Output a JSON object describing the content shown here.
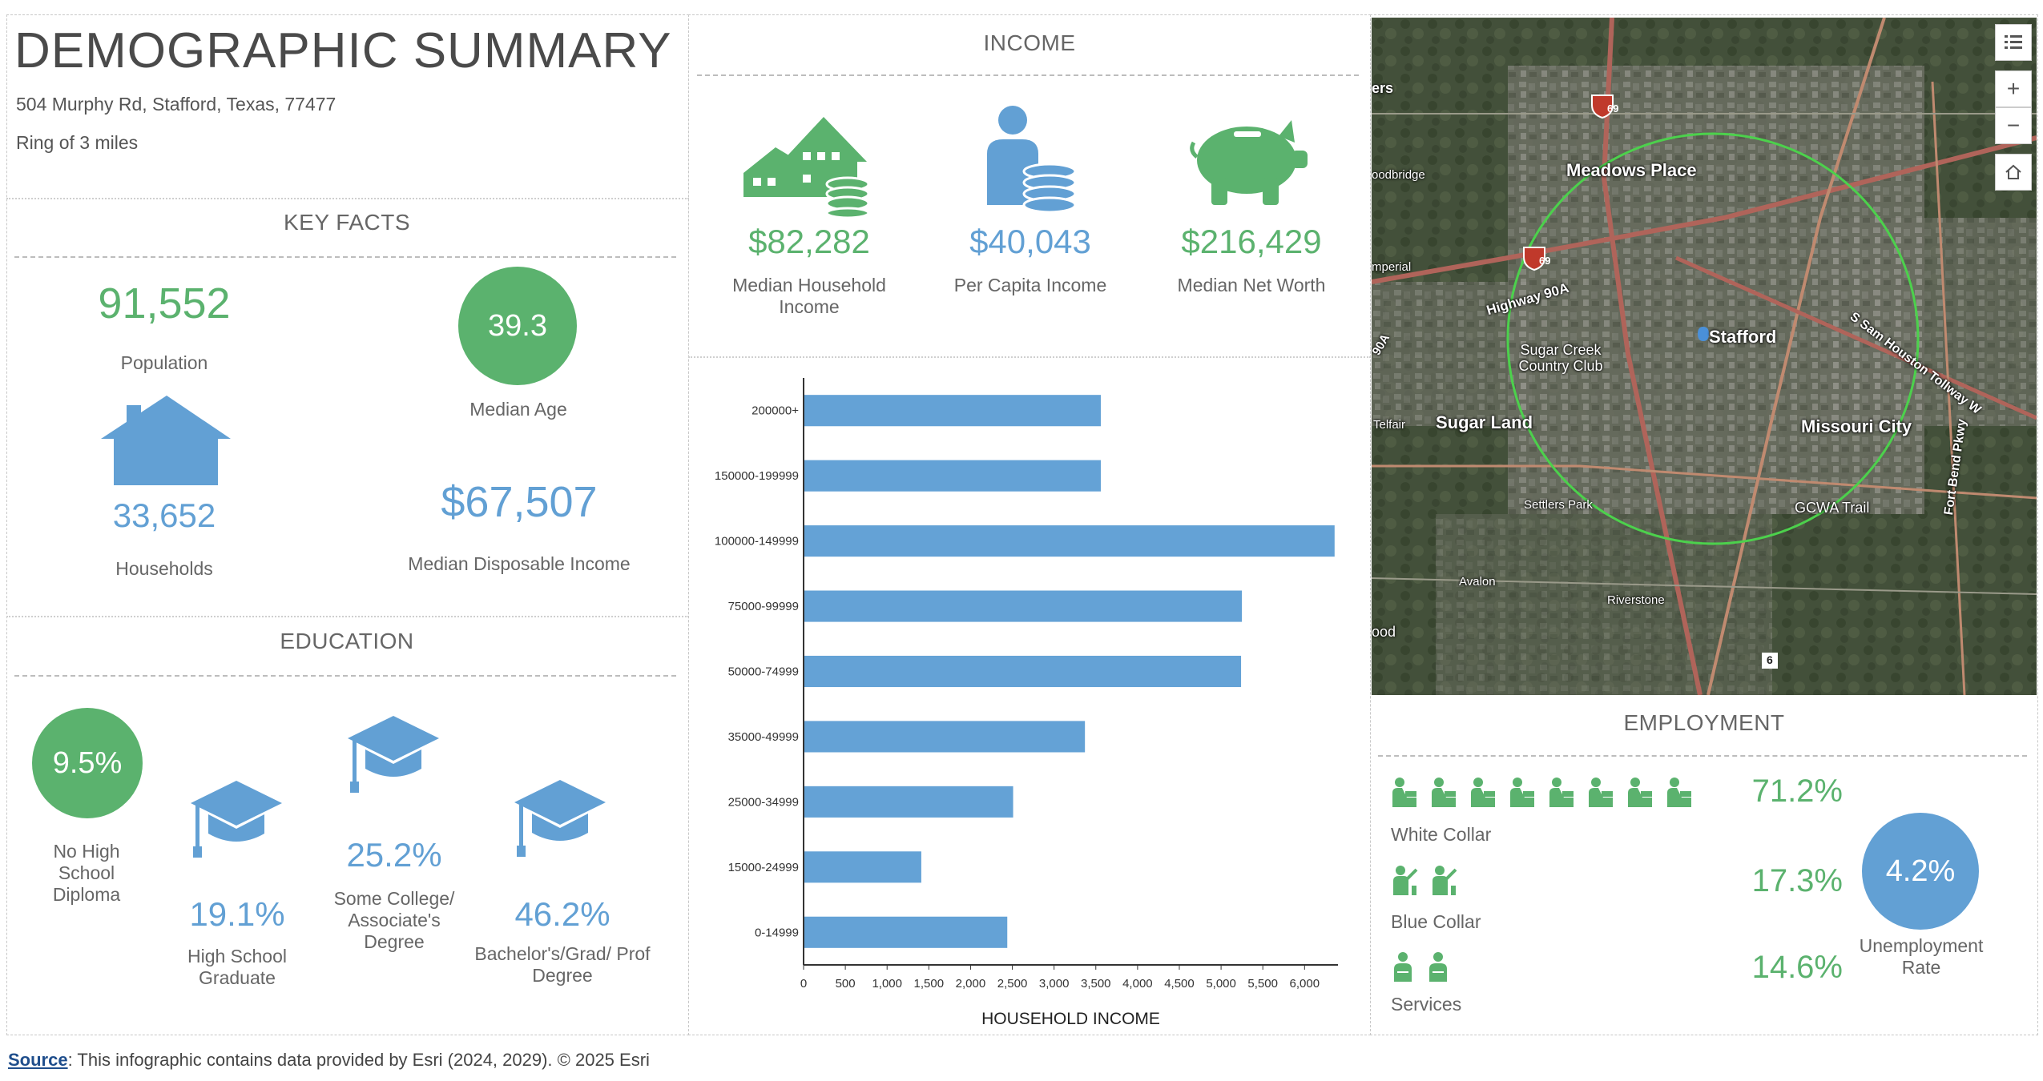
{
  "header": {
    "title": "DEMOGRAPHIC SUMMARY",
    "address": "504 Murphy Rd, Stafford, Texas, 77477",
    "ring": "Ring of 3 miles"
  },
  "key_facts": {
    "heading": "KEY FACTS",
    "population_value": "91,552",
    "population_label": "Population",
    "median_age_value": "39.3",
    "median_age_label": "Median Age",
    "households_value": "33,652",
    "households_label": "Households",
    "disposable_income_value": "$67,507",
    "disposable_income_label": "Median Disposable Income"
  },
  "education": {
    "heading": "EDUCATION",
    "no_hs_value": "9.5%",
    "no_hs_label": "No High School Diploma",
    "hs_value": "19.1%",
    "hs_label": "High School Graduate",
    "college_value": "25.2%",
    "college_label": "Some College/ Associate's Degree",
    "bachelor_value": "46.2%",
    "bachelor_label": "Bachelor's/Grad/ Prof Degree"
  },
  "income": {
    "heading": "INCOME",
    "median_household_value": "$82,282",
    "median_household_label": "Median Household Income",
    "per_capita_value": "$40,043",
    "per_capita_label": "Per Capita Income",
    "net_worth_value": "$216,429",
    "net_worth_label": "Median Net Worth"
  },
  "chart_data": {
    "type": "bar",
    "orientation": "horizontal",
    "categories": [
      "200000+",
      "150000-199999",
      "100000-149999",
      "75000-99999",
      "50000-74999",
      "35000-49999",
      "25000-34999",
      "15000-24999",
      "0-14999"
    ],
    "values": [
      3550,
      3550,
      6350,
      5240,
      5230,
      3360,
      2500,
      1400,
      2430
    ],
    "xlabel": "HOUSEHOLD INCOME",
    "xlim": [
      0,
      6400
    ],
    "xticks": [
      "0",
      "500",
      "1,000",
      "1,500",
      "2,000",
      "2,500",
      "3,000",
      "3,500",
      "4,000",
      "4,500",
      "5,000",
      "5,500",
      "6,000"
    ],
    "bar_color": "#64a2d6"
  },
  "employment": {
    "heading": "EMPLOYMENT",
    "white_collar_value": "71.2%",
    "white_collar_label": "White Collar",
    "blue_collar_value": "17.3%",
    "blue_collar_label": "Blue Collar",
    "services_value": "14.6%",
    "services_label": "Services",
    "unemployment_value": "4.2%",
    "unemployment_label": "Unemployment Rate"
  },
  "map": {
    "labels": {
      "meadows": "Meadows Place",
      "stafford": "Stafford",
      "sugar_land": "Sugar Land",
      "missouri": "Missouri City",
      "sugar_creek": "Sugar Creek Country Club",
      "gcwa": "GCWA Trail",
      "settlers": "Settlers Park",
      "avalon": "Avalon",
      "riverstone": "Riverstone",
      "highway": "Highway 90A",
      "sam_houston": "S Sam Houston Tollway W",
      "fort_bend": "Fort Bend Pkwy",
      "telfair": "Telfair",
      "woodbridge": "oodbridge",
      "imperial": "mperial",
      "ers": "ers",
      "ood": "ood",
      "a90": "90A",
      "i69_top": "69",
      "i69_mid": "69",
      "hwy6": "6"
    },
    "buttons": {
      "zoom_in": "+",
      "zoom_out": "−"
    }
  },
  "footer": {
    "source_link": "Source",
    "source_text": ": This infographic contains data provided by Esri (2024, 2029). © 2025 Esri"
  },
  "colors": {
    "green": "#5bb26e",
    "blue": "#62a0d4",
    "bar": "#64a2d6"
  }
}
